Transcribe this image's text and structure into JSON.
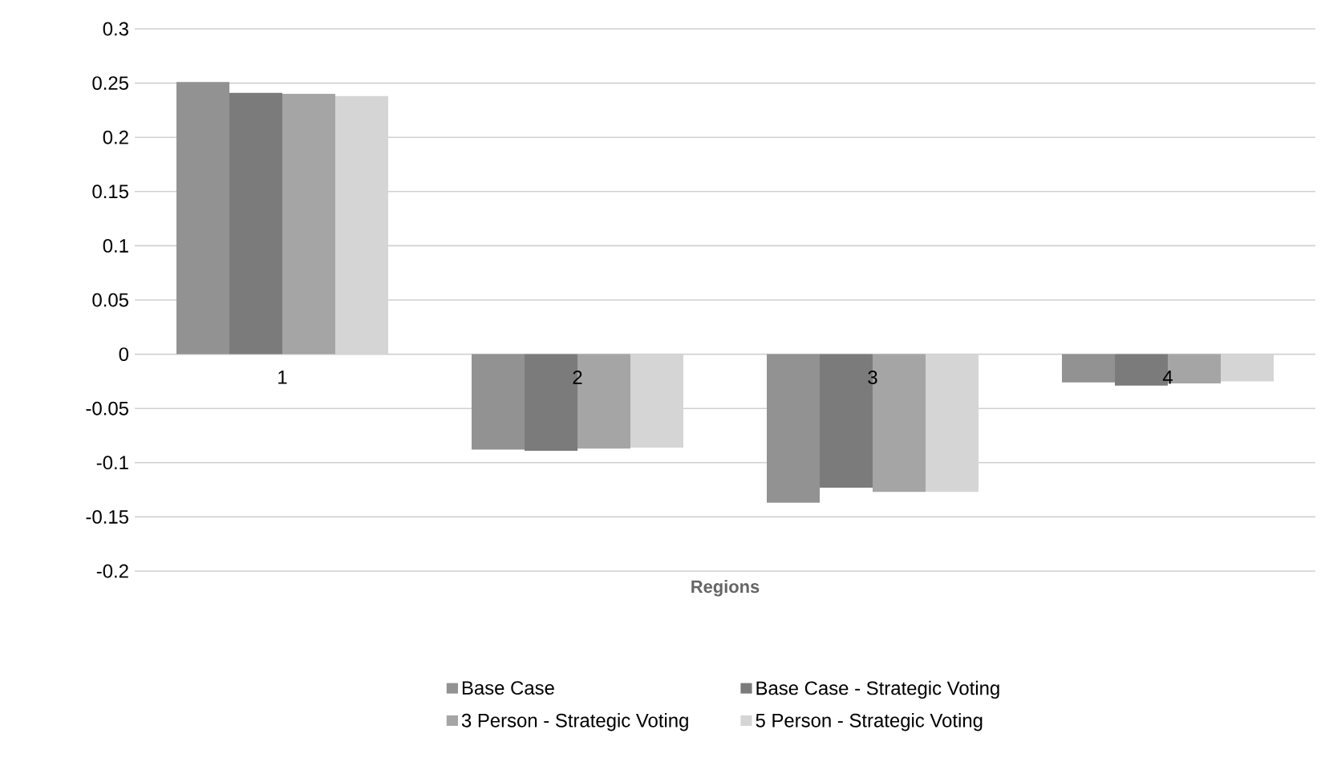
{
  "chart_data": {
    "type": "bar",
    "xlabel": "Regions",
    "categories": [
      "1",
      "2",
      "3",
      "4"
    ],
    "series": [
      {
        "name": "Base Case",
        "color": "#929292",
        "values": [
          0.251,
          -0.088,
          -0.137,
          -0.026
        ]
      },
      {
        "name": "Base Case - Strategic Voting",
        "color": "#7b7b7b",
        "values": [
          0.241,
          -0.089,
          -0.123,
          -0.029
        ]
      },
      {
        "name": "3 Person - Strategic Voting",
        "color": "#a5a5a5",
        "values": [
          0.24,
          -0.087,
          -0.127,
          -0.027
        ]
      },
      {
        "name": "5 Person - Strategic Voting",
        "color": "#d5d5d5",
        "values": [
          0.238,
          -0.086,
          -0.127,
          -0.025
        ]
      }
    ],
    "ylim": [
      -0.2,
      0.3
    ],
    "yticks": [
      -0.2,
      -0.15,
      -0.1,
      -0.05,
      0,
      0.05,
      0.1,
      0.15,
      0.2,
      0.25,
      0.3
    ],
    "grid": "y",
    "legend": "bottom"
  }
}
